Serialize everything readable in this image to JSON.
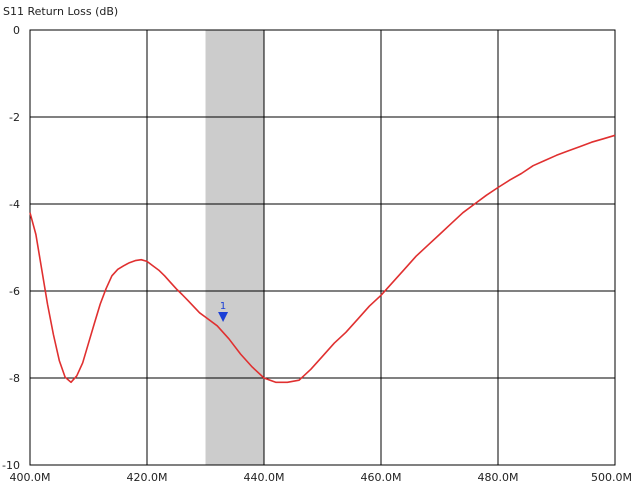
{
  "chart_data": {
    "type": "line",
    "title": "S11 Return Loss (dB)",
    "xlim": [
      400,
      500
    ],
    "ylim": [
      -10,
      0
    ],
    "x_ticks": [
      {
        "value": 400,
        "label": "400.0M"
      },
      {
        "value": 420,
        "label": "420.0M"
      },
      {
        "value": 440,
        "label": "440.0M"
      },
      {
        "value": 460,
        "label": "460.0M"
      },
      {
        "value": 480,
        "label": "480.0M"
      },
      {
        "value": 500,
        "label": "500.0M"
      }
    ],
    "y_ticks": [
      {
        "value": 0,
        "label": "0"
      },
      {
        "value": -2,
        "label": "-2"
      },
      {
        "value": -4,
        "label": "-4"
      },
      {
        "value": -6,
        "label": "-6"
      },
      {
        "value": -8,
        "label": "-8"
      },
      {
        "value": -10,
        "label": "-10"
      }
    ],
    "grid": true,
    "highlight_band": {
      "x_start": 430,
      "x_end": 440,
      "color": "#cccccc"
    },
    "series": [
      {
        "color": "#e03030",
        "x": [
          400,
          401,
          402,
          403,
          404,
          405,
          406,
          407,
          408,
          409,
          410,
          411,
          412,
          413,
          414,
          415,
          416,
          417,
          418,
          419,
          420,
          421,
          422,
          423,
          424,
          425,
          426,
          427,
          428,
          429,
          430,
          432,
          434,
          436,
          438,
          440,
          442,
          444,
          446,
          448,
          450,
          452,
          454,
          456,
          458,
          460,
          462,
          464,
          466,
          468,
          470,
          472,
          474,
          476,
          478,
          480,
          482,
          484,
          486,
          488,
          490,
          492,
          494,
          496,
          498,
          500
        ],
        "y": [
          -4.2,
          -4.7,
          -5.5,
          -6.3,
          -7.0,
          -7.6,
          -7.98,
          -8.1,
          -7.95,
          -7.65,
          -7.2,
          -6.75,
          -6.3,
          -5.95,
          -5.65,
          -5.5,
          -5.42,
          -5.35,
          -5.3,
          -5.28,
          -5.32,
          -5.42,
          -5.52,
          -5.65,
          -5.8,
          -5.95,
          -6.08,
          -6.22,
          -6.36,
          -6.5,
          -6.6,
          -6.8,
          -7.1,
          -7.45,
          -7.75,
          -8.0,
          -8.1,
          -8.1,
          -8.05,
          -7.8,
          -7.5,
          -7.2,
          -6.95,
          -6.65,
          -6.35,
          -6.1,
          -5.8,
          -5.5,
          -5.2,
          -4.95,
          -4.7,
          -4.45,
          -4.2,
          -4.0,
          -3.8,
          -3.62,
          -3.45,
          -3.3,
          -3.12,
          -3.0,
          -2.88,
          -2.78,
          -2.68,
          -2.58,
          -2.5,
          -2.42
        ]
      }
    ],
    "markers": [
      {
        "label": "1",
        "x": 433,
        "y": -6.62,
        "color": "#1a3fd6"
      }
    ]
  }
}
